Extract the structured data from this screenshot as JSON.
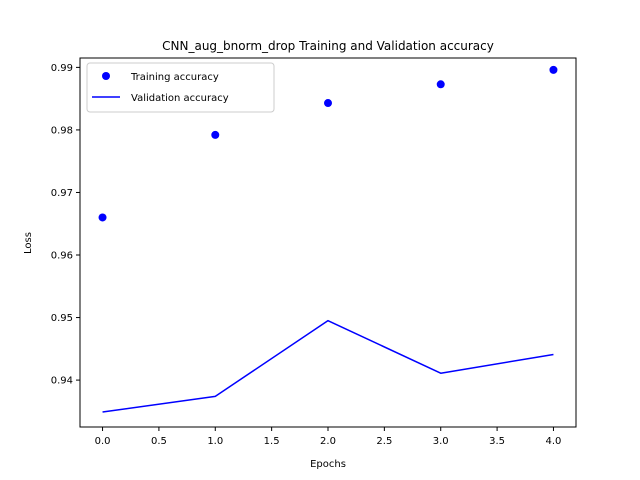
{
  "chart_data": {
    "type": "line",
    "title": "CNN_aug_bnorm_drop Training and Validation accuracy",
    "xlabel": "Epochs",
    "ylabel": "Loss",
    "xlim": [
      -0.2,
      4.2
    ],
    "ylim": [
      0.9325,
      0.9915
    ],
    "xticks": [
      0.0,
      0.5,
      1.0,
      1.5,
      2.0,
      2.5,
      3.0,
      3.5,
      4.0
    ],
    "xtick_labels": [
      "0.0",
      "0.5",
      "1.0",
      "1.5",
      "2.0",
      "2.5",
      "3.0",
      "3.5",
      "4.0"
    ],
    "yticks": [
      0.94,
      0.95,
      0.96,
      0.97,
      0.98,
      0.99
    ],
    "ytick_labels": [
      "0.94",
      "0.95",
      "0.96",
      "0.97",
      "0.98",
      "0.99"
    ],
    "grid": false,
    "legend_position": "upper-left",
    "series": [
      {
        "name": "Training accuracy",
        "style": "markers",
        "color": "#0000ff",
        "x": [
          0,
          1,
          2,
          3,
          4
        ],
        "y": [
          0.966,
          0.9792,
          0.9843,
          0.9873,
          0.9896
        ]
      },
      {
        "name": "Validation accuracy",
        "style": "line",
        "color": "#0000ff",
        "x": [
          0,
          1,
          2,
          3,
          4
        ],
        "y": [
          0.9349,
          0.9374,
          0.9495,
          0.9411,
          0.9441
        ]
      }
    ]
  }
}
